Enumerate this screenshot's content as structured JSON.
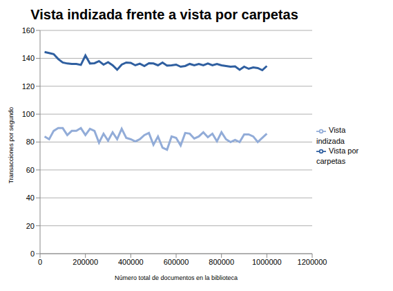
{
  "chart_data": {
    "type": "line",
    "title": "Vista indizada frente a vista por carpetas",
    "x_label": "Número total de documentos en la biblioteca",
    "y_label": "Transacciones por segundo",
    "x": [
      20000,
      40000,
      60000,
      80000,
      100000,
      120000,
      140000,
      160000,
      180000,
      200000,
      220000,
      240000,
      260000,
      280000,
      300000,
      320000,
      340000,
      360000,
      380000,
      400000,
      420000,
      440000,
      460000,
      480000,
      500000,
      520000,
      540000,
      560000,
      580000,
      600000,
      620000,
      640000,
      660000,
      680000,
      700000,
      720000,
      740000,
      760000,
      780000,
      800000,
      820000,
      840000,
      860000,
      880000,
      900000,
      920000,
      940000,
      960000,
      980000,
      1000000
    ],
    "series": [
      {
        "name": "Vista por carpetas",
        "color": "#2f5fa0",
        "values": [
          144.5,
          143.8,
          143,
          139.5,
          137,
          136.3,
          136,
          136,
          135.3,
          142,
          136.3,
          136.5,
          138,
          135.5,
          137.2,
          135,
          131.8,
          135.5,
          137,
          136.7,
          135,
          136.2,
          134.5,
          136.5,
          136.3,
          135,
          137,
          134.8,
          135,
          135.5,
          134,
          134.5,
          136,
          135,
          136,
          135,
          136.3,
          135,
          136,
          135,
          134.5,
          134,
          134.2,
          131.8,
          134,
          132.5,
          133.5,
          133,
          131.5,
          134.5
        ]
      },
      {
        "name": "Vista indizada",
        "color": "#92acd8",
        "values": [
          84,
          82,
          88,
          90,
          90,
          85,
          88,
          88,
          90,
          85,
          89.5,
          88,
          79.5,
          86,
          81,
          87,
          82,
          89.5,
          83,
          82,
          80.5,
          82,
          85,
          86.5,
          78,
          84,
          76,
          74.5,
          84,
          83,
          77.5,
          86.5,
          86,
          82.5,
          84,
          87,
          83.5,
          86,
          80.5,
          87,
          82,
          80,
          81.5,
          80,
          85.5,
          85.5,
          84,
          80,
          83,
          86
        ]
      }
    ],
    "xlim": [
      0,
      1200000
    ],
    "xticks": [
      0,
      200000,
      400000,
      600000,
      800000,
      1000000,
      1200000
    ],
    "ylim": [
      0,
      160
    ],
    "yticks": [
      0,
      20,
      40,
      60,
      80,
      100,
      120,
      140,
      160
    ],
    "grid": true,
    "legend": "right"
  }
}
